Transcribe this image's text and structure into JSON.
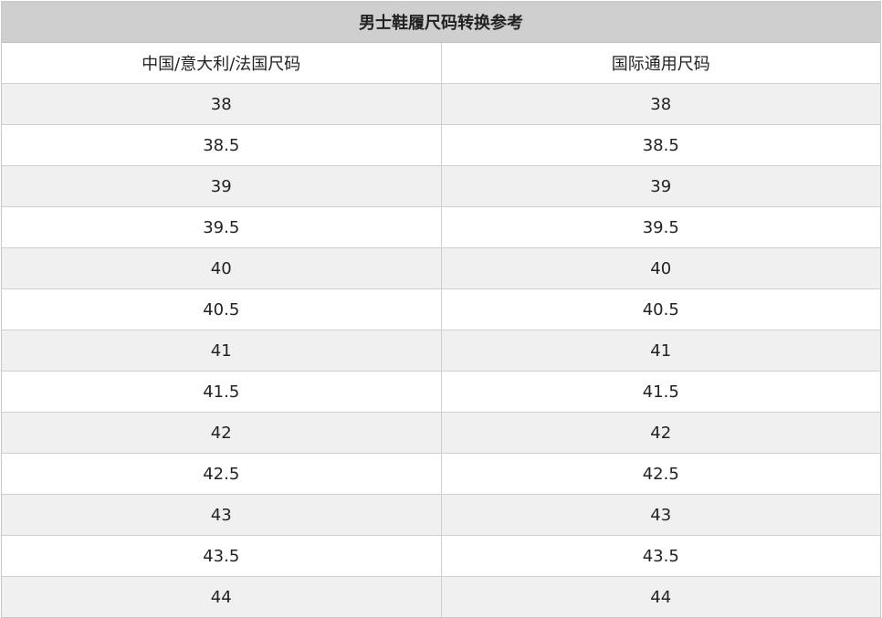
{
  "title": "男士鞋履尺码转换参考",
  "headers": [
    "中国/意大利/法国尺码",
    "国际通用尺码"
  ],
  "rows": [
    [
      "38",
      "38"
    ],
    [
      "38.5",
      "38.5"
    ],
    [
      "39",
      "39"
    ],
    [
      "39.5",
      "39.5"
    ],
    [
      "40",
      "40"
    ],
    [
      "40.5",
      "40.5"
    ],
    [
      "41",
      "41"
    ],
    [
      "41.5",
      "41.5"
    ],
    [
      "42",
      "42"
    ],
    [
      "42.5",
      "42.5"
    ],
    [
      "43",
      "43"
    ],
    [
      "43.5",
      "43.5"
    ],
    [
      "44",
      "44"
    ]
  ],
  "colors": {
    "title_bg": "#cfcfcf",
    "stripe": "#f0f0f0",
    "border": "#d0d0d0"
  }
}
